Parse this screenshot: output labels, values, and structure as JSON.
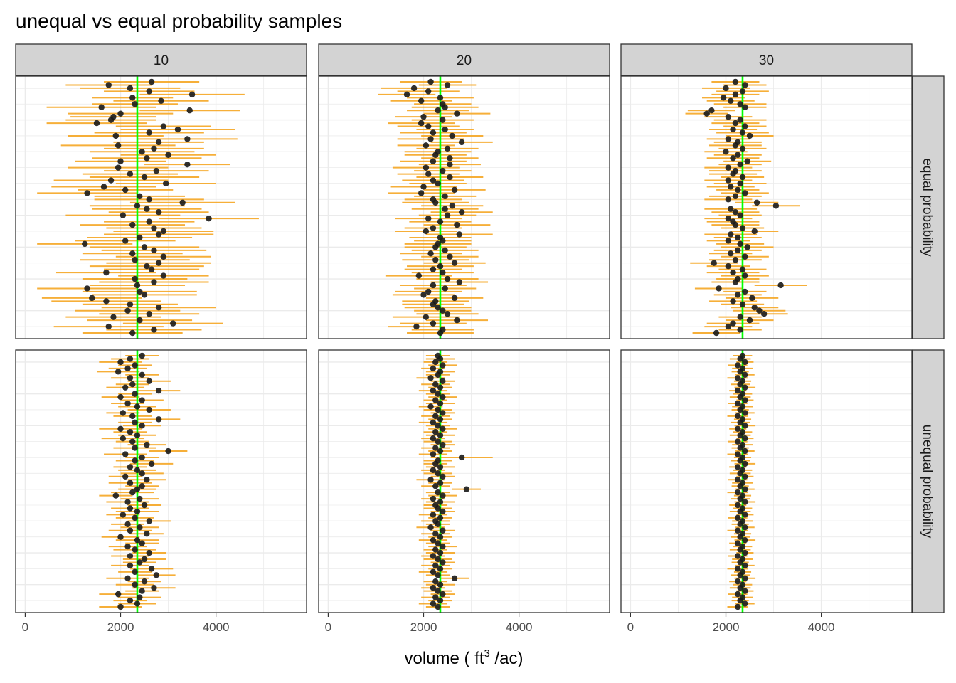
{
  "chart_data": {
    "type": "errorbar-dotplot",
    "title": "unequal vs equal probability samples",
    "xlabel_prefix": "volume ( ft",
    "xlabel_superscript": "3",
    "xlabel_suffix": " /ac)",
    "ylabel": "",
    "xlim": [
      -200,
      5900
    ],
    "xticks": [
      0,
      2000,
      4000
    ],
    "xtick_labels": [
      "0",
      "2000",
      "4000"
    ],
    "true_value": 2350,
    "grid": true,
    "col_facets": [
      "10",
      "20",
      "30"
    ],
    "row_facets": [
      "equal probability",
      "unequal probability"
    ],
    "samples_per_panel": 80,
    "colors": {
      "interval": "#f5a623",
      "point": "#1a1a1a",
      "true_line": "#00ff00",
      "strip_fill": "#d3d3d3",
      "grid": "#ebebeb",
      "panel_border": "#333333"
    },
    "panels": [
      {
        "row": "equal probability",
        "col": "10",
        "estimates": [
          2650,
          1750,
          2200,
          2600,
          3500,
          2250,
          2850,
          2300,
          1600,
          3450,
          2000,
          1850,
          1800,
          1500,
          2900,
          3200,
          2600,
          1900,
          3400,
          2800,
          1950,
          2700,
          2450,
          3000,
          2550,
          2000,
          3400,
          1950,
          2750,
          2200,
          2500,
          1800,
          2950,
          1650,
          2100,
          1300,
          2400,
          2600,
          3300,
          2350,
          2550,
          2800,
          2050,
          3850,
          2600,
          2250,
          2700,
          2900,
          2800,
          2400,
          2100,
          1250,
          2500,
          2700,
          2250,
          2900,
          2300,
          2800,
          2550,
          2650,
          1700,
          2900,
          2300,
          2700,
          2350,
          1300,
          2400,
          2500,
          1400,
          1700,
          2200,
          2800,
          2150,
          2600,
          1850,
          2400,
          3100,
          1750,
          2700,
          2250
        ],
        "half_widths": [
          1000,
          900,
          1050,
          950,
          1100,
          850,
          1000,
          900,
          1150,
          1050,
          1100,
          900,
          950,
          1050,
          1000,
          1200,
          1150,
          1000,
          1050,
          950,
          1200,
          1050,
          1100,
          1000,
          1150,
          950,
          900,
          1050,
          1100,
          1000,
          1150,
          1200,
          1050,
          1100,
          1000,
          1050,
          950,
          1150,
          1100,
          1000,
          1150,
          1050,
          1200,
          1050,
          950,
          1100,
          1000,
          1050,
          1150,
          1100,
          1050,
          1000,
          1150,
          1100,
          1050,
          1000,
          1150,
          1100,
          1200,
          1000,
          1050,
          950,
          1100,
          1150,
          1000,
          1050,
          1200,
          1100,
          1050,
          1150,
          1000,
          1200,
          1100,
          1050,
          1000,
          1100,
          1050,
          1150,
          1000,
          1050
        ]
      },
      {
        "row": "equal probability",
        "col": "20",
        "estimates": [
          2150,
          2500,
          1800,
          2100,
          1650,
          2350,
          1950,
          2400,
          2450,
          2300,
          2700,
          2000,
          2400,
          1950,
          2100,
          2450,
          2200,
          2600,
          2150,
          2800,
          2050,
          2500,
          2300,
          2250,
          2550,
          2200,
          2550,
          2050,
          2400,
          2100,
          2550,
          2200,
          2300,
          2000,
          2650,
          1950,
          2450,
          2200,
          2250,
          2600,
          2450,
          2800,
          2500,
          2100,
          2350,
          2700,
          2200,
          2050,
          2750,
          2350,
          2400,
          2300,
          2250,
          2450,
          2150,
          2550,
          2250,
          2650,
          2350,
          2200,
          2400,
          1900,
          2500,
          2750,
          2200,
          2450,
          2100,
          2000,
          2650,
          2250,
          2200,
          2300,
          2400,
          2500,
          2050,
          2700,
          2200,
          1850,
          2400,
          2350
        ],
        "half_widths": [
          650,
          600,
          700,
          650,
          600,
          700,
          650,
          600,
          700,
          650,
          700,
          600,
          650,
          700,
          650,
          600,
          700,
          650,
          700,
          650,
          600,
          650,
          700,
          650,
          600,
          700,
          650,
          700,
          600,
          650,
          700,
          650,
          600,
          700,
          650,
          700,
          650,
          600,
          700,
          650,
          700,
          650,
          600,
          700,
          650,
          700,
          600,
          650,
          700,
          650,
          600,
          700,
          650,
          700,
          650,
          600,
          700,
          650,
          700,
          600,
          650,
          700,
          650,
          600,
          700,
          650,
          700,
          650,
          600,
          700,
          650,
          700,
          600,
          650,
          700,
          650,
          700,
          600,
          650,
          700
        ]
      },
      {
        "row": "equal probability",
        "col": "30",
        "estimates": [
          2200,
          2400,
          2000,
          2350,
          2200,
          1950,
          2100,
          2300,
          2400,
          1700,
          1600,
          2050,
          2300,
          2200,
          2400,
          2150,
          2350,
          2500,
          2050,
          2250,
          2200,
          2350,
          2000,
          2250,
          2150,
          2450,
          2300,
          2050,
          2200,
          2150,
          2350,
          2050,
          2300,
          2100,
          2250,
          2400,
          2200,
          2050,
          2650,
          3050,
          2100,
          2200,
          2300,
          2050,
          2150,
          2200,
          2350,
          2600,
          2100,
          2250,
          2050,
          2300,
          2450,
          2250,
          2100,
          2400,
          2200,
          1750,
          2050,
          2350,
          2150,
          2400,
          2250,
          2200,
          3150,
          1850,
          2400,
          2250,
          2550,
          2150,
          2350,
          2600,
          2700,
          2800,
          2300,
          2500,
          2150,
          2050,
          2300,
          1800
        ],
        "half_widths": [
          500,
          450,
          500,
          550,
          500,
          450,
          500,
          550,
          450,
          500,
          450,
          500,
          550,
          500,
          450,
          500,
          550,
          500,
          450,
          500,
          550,
          500,
          450,
          500,
          550,
          500,
          450,
          500,
          550,
          500,
          450,
          500,
          550,
          500,
          450,
          500,
          550,
          500,
          450,
          500,
          550,
          500,
          450,
          500,
          550,
          500,
          450,
          500,
          550,
          500,
          450,
          500,
          550,
          500,
          450,
          500,
          550,
          500,
          450,
          500,
          550,
          500,
          450,
          500,
          550,
          500,
          450,
          500,
          550,
          500,
          450,
          500,
          550,
          500,
          450,
          500,
          550,
          500,
          450,
          500
        ]
      },
      {
        "row": "unequal probability",
        "col": "10",
        "estimates": [
          2450,
          2200,
          2000,
          2300,
          2150,
          1950,
          2450,
          2200,
          2600,
          2250,
          2100,
          2800,
          2300,
          2000,
          2450,
          2150,
          2350,
          2600,
          2050,
          2250,
          2800,
          2300,
          2450,
          2000,
          2200,
          2350,
          2050,
          2250,
          2550,
          2300,
          3000,
          2100,
          2450,
          2300,
          2650,
          2200,
          2350,
          2450,
          2100,
          2550,
          2200,
          2450,
          2350,
          2250,
          1900,
          2400,
          2150,
          2500,
          2200,
          2350,
          2050,
          2300,
          2600,
          2150,
          2400,
          2200,
          2550,
          2000,
          2350,
          2450,
          2150,
          2300,
          2600,
          2200,
          2500,
          2400,
          2200,
          2650,
          2300,
          2750,
          2150,
          2500,
          2300,
          2700,
          2450,
          1950,
          2400,
          2200,
          2350,
          2000
        ],
        "half_widths": [
          350,
          400,
          450,
          350,
          400,
          450,
          350,
          400,
          450,
          350,
          400,
          450,
          350,
          400,
          450,
          350,
          400,
          450,
          350,
          400,
          450,
          350,
          400,
          450,
          350,
          400,
          450,
          350,
          400,
          450,
          400,
          450,
          350,
          400,
          450,
          350,
          400,
          450,
          350,
          400,
          450,
          350,
          400,
          450,
          350,
          400,
          450,
          350,
          400,
          450,
          350,
          400,
          450,
          350,
          400,
          450,
          350,
          400,
          450,
          350,
          400,
          450,
          350,
          400,
          450,
          350,
          400,
          450,
          350,
          400,
          450,
          350,
          400,
          450,
          350,
          400,
          450,
          350,
          400,
          450
        ]
      },
      {
        "row": "unequal probability",
        "col": "20",
        "estimates": [
          2300,
          2350,
          2250,
          2400,
          2200,
          2350,
          2300,
          2150,
          2400,
          2250,
          2350,
          2200,
          2300,
          2400,
          2250,
          2350,
          2150,
          2300,
          2400,
          2250,
          2350,
          2200,
          2300,
          2400,
          2250,
          2350,
          2200,
          2300,
          2400,
          2250,
          2350,
          2200,
          2800,
          2300,
          2250,
          2350,
          2200,
          2300,
          2400,
          2150,
          2350,
          2250,
          2900,
          2300,
          2400,
          2200,
          2350,
          2250,
          2300,
          2400,
          2200,
          2350,
          2250,
          2300,
          2150,
          2400,
          2250,
          2350,
          2200,
          2300,
          2400,
          2250,
          2350,
          2200,
          2300,
          2400,
          2250,
          2350,
          2200,
          2300,
          2650,
          2250,
          2350,
          2200,
          2300,
          2400,
          2250,
          2350,
          2200,
          2300
        ],
        "half_widths": [
          250,
          300,
          250,
          300,
          250,
          300,
          250,
          300,
          250,
          300,
          250,
          300,
          250,
          300,
          250,
          300,
          250,
          300,
          250,
          300,
          250,
          300,
          250,
          300,
          250,
          300,
          250,
          300,
          250,
          300,
          250,
          300,
          650,
          300,
          250,
          300,
          250,
          300,
          250,
          300,
          250,
          300,
          300,
          250,
          300,
          250,
          300,
          250,
          300,
          250,
          300,
          250,
          300,
          250,
          300,
          250,
          300,
          250,
          300,
          250,
          300,
          250,
          300,
          250,
          300,
          250,
          300,
          250,
          300,
          250,
          300,
          250,
          300,
          250,
          300,
          250,
          300,
          250,
          300,
          250
        ]
      },
      {
        "row": "unequal probability",
        "col": "30",
        "estimates": [
          2350,
          2300,
          2400,
          2250,
          2350,
          2300,
          2400,
          2250,
          2350,
          2300,
          2400,
          2250,
          2350,
          2300,
          2400,
          2250,
          2350,
          2300,
          2400,
          2250,
          2350,
          2300,
          2400,
          2250,
          2350,
          2300,
          2400,
          2250,
          2350,
          2300,
          2400,
          2250,
          2350,
          2300,
          2400,
          2250,
          2350,
          2300,
          2400,
          2250,
          2350,
          2300,
          2400,
          2250,
          2350,
          2300,
          2400,
          2250,
          2350,
          2300,
          2400,
          2250,
          2350,
          2300,
          2400,
          2250,
          2350,
          2300,
          2400,
          2250,
          2350,
          2300,
          2400,
          2250,
          2350,
          2300,
          2400,
          2250,
          2350,
          2300,
          2400,
          2250,
          2350,
          2300,
          2400,
          2250,
          2350,
          2300,
          2400,
          2250
        ],
        "half_widths": [
          200,
          220,
          180,
          200,
          220,
          180,
          200,
          220,
          180,
          200,
          220,
          180,
          200,
          220,
          180,
          200,
          220,
          180,
          200,
          220,
          180,
          200,
          220,
          180,
          200,
          220,
          180,
          200,
          220,
          180,
          200,
          220,
          180,
          200,
          220,
          180,
          200,
          220,
          180,
          200,
          220,
          180,
          200,
          220,
          180,
          200,
          220,
          180,
          200,
          220,
          180,
          200,
          220,
          180,
          200,
          220,
          180,
          200,
          220,
          180,
          200,
          220,
          180,
          200,
          220,
          180,
          200,
          220,
          180,
          200,
          220,
          180,
          200,
          220,
          180,
          200,
          220,
          180,
          200,
          220
        ]
      }
    ]
  }
}
